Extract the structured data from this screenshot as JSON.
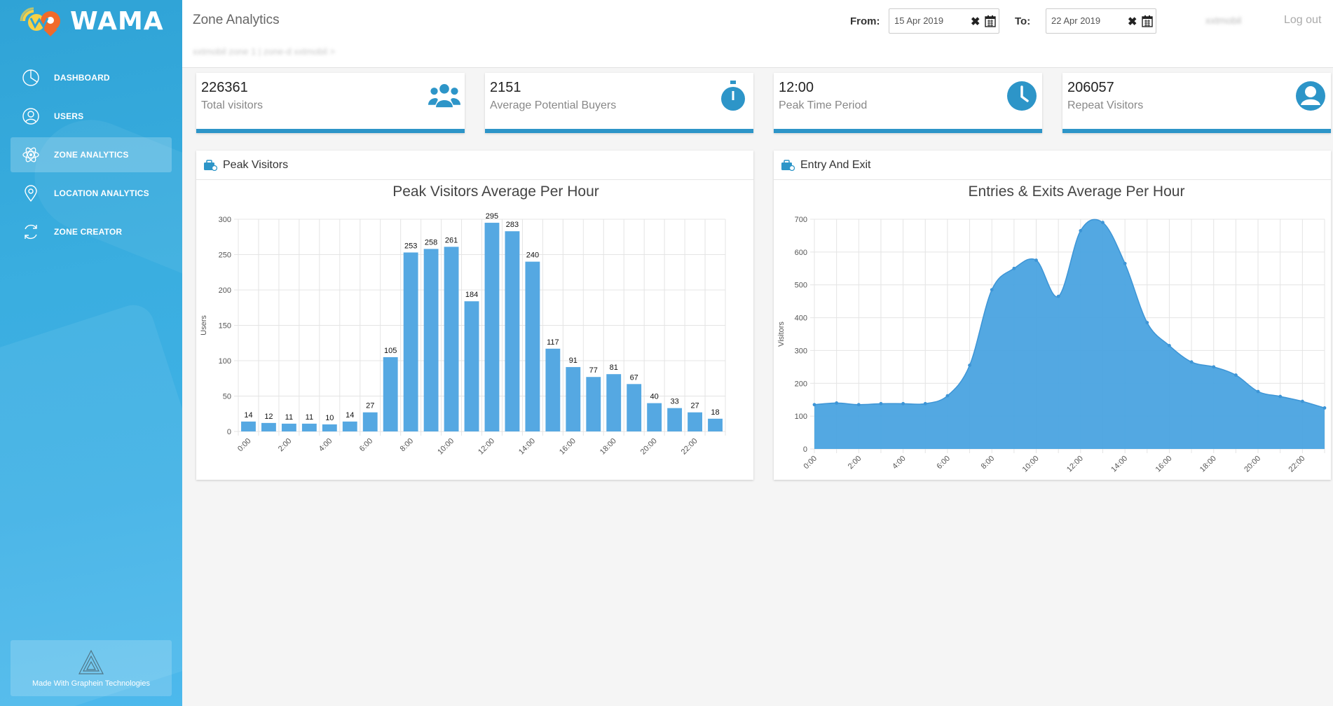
{
  "brand": {
    "name": "WAMA"
  },
  "sidebar": {
    "items": [
      {
        "label": "DASHBOARD",
        "icon": "pie-chart-icon",
        "active": false
      },
      {
        "label": "USERS",
        "icon": "user-icon",
        "active": false
      },
      {
        "label": "ZONE ANALYTICS",
        "icon": "atom-icon",
        "active": true
      },
      {
        "label": "LOCATION ANALYTICS",
        "icon": "map-pin-icon",
        "active": false
      },
      {
        "label": "ZONE CREATOR",
        "icon": "refresh-icon",
        "active": false
      }
    ],
    "footer": "Made With Graphein Technologies"
  },
  "header": {
    "title": "Zone Analytics",
    "breadcrumb": "xxtmobil zone 1 | zone-d xxtmobil >",
    "from_label": "From:",
    "from_value": "15 Apr 2019",
    "to_label": "To:",
    "to_value": "22 Apr 2019",
    "user": "xxtmobil",
    "logout": "Log out"
  },
  "stats": [
    {
      "value": "226361",
      "label": "Total visitors",
      "icon": "users-group-icon"
    },
    {
      "value": "2151",
      "label": "Average Potential Buyers",
      "icon": "stopwatch-icon"
    },
    {
      "value": "12:00",
      "label": "Peak Time Period",
      "icon": "clock-icon"
    },
    {
      "value": "206057",
      "label": "Repeat Visitors",
      "icon": "user-circle-icon"
    }
  ],
  "colors": {
    "accent": "#2d95c8",
    "bar": "#55a8e2",
    "area": "#4aa3e0"
  },
  "panels": {
    "peak": {
      "title": "Peak Visitors",
      "icon": "briefcase-icon"
    },
    "entry": {
      "title": "Entry And Exit",
      "icon": "briefcase-icon"
    }
  },
  "chart_data": [
    {
      "type": "bar",
      "title": "Peak Visitors Average Per Hour",
      "ylabel": "Users",
      "xlabel": "",
      "ylim": [
        0,
        300
      ],
      "yticks": [
        0,
        50,
        100,
        150,
        200,
        250,
        300
      ],
      "x_tick_labels": [
        "0:00",
        "2:00",
        "4:00",
        "6:00",
        "8:00",
        "10:00",
        "12:00",
        "14:00",
        "16:00",
        "18:00",
        "20:00",
        "22:00"
      ],
      "categories": [
        "0:00",
        "1:00",
        "2:00",
        "3:00",
        "4:00",
        "5:00",
        "6:00",
        "7:00",
        "8:00",
        "9:00",
        "10:00",
        "11:00",
        "12:00",
        "13:00",
        "14:00",
        "15:00",
        "16:00",
        "17:00",
        "18:00",
        "19:00",
        "20:00",
        "21:00",
        "22:00",
        "23:00"
      ],
      "values": [
        14,
        12,
        11,
        11,
        10,
        14,
        27,
        105,
        253,
        258,
        261,
        184,
        295,
        283,
        240,
        117,
        91,
        77,
        81,
        67,
        40,
        33,
        27,
        18
      ],
      "grid": true
    },
    {
      "type": "area",
      "title": "Entries & Exits Average Per Hour",
      "ylabel": "Visitors",
      "xlabel": "",
      "ylim": [
        0,
        700
      ],
      "yticks": [
        0,
        100,
        200,
        300,
        400,
        500,
        600,
        700
      ],
      "x_tick_labels": [
        "0:00",
        "2:00",
        "4:00",
        "6:00",
        "8:00",
        "10:00",
        "12:00",
        "14:00",
        "16:00",
        "18:00",
        "20:00",
        "22:00"
      ],
      "x": [
        0,
        1,
        2,
        3,
        4,
        5,
        6,
        7,
        8,
        9,
        10,
        11,
        12,
        13,
        14,
        15,
        16,
        17,
        18,
        19,
        20,
        21,
        22,
        23
      ],
      "values": [
        135,
        140,
        135,
        138,
        138,
        138,
        162,
        255,
        485,
        550,
        575,
        465,
        665,
        690,
        565,
        385,
        315,
        265,
        250,
        225,
        175,
        160,
        145,
        125
      ],
      "grid": true
    }
  ]
}
